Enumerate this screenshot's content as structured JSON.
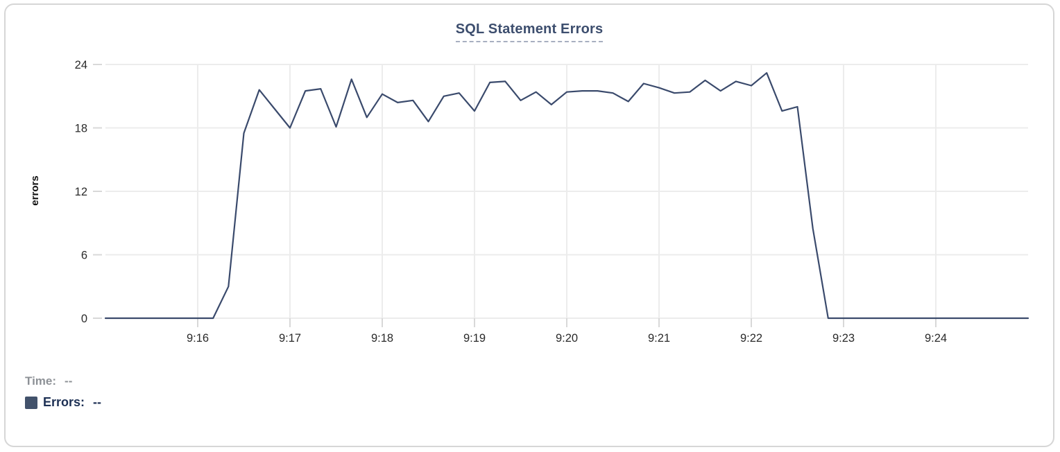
{
  "chart": {
    "title": "SQL Statement Errors"
  },
  "legend": {
    "time_label": "Time:",
    "time_value": "--",
    "errors_label": "Errors:",
    "errors_value": "--"
  },
  "colors": {
    "line": "#3a4a6c",
    "title": "#3d4e6e",
    "legend_swatch": "#42526b",
    "legend_muted": "#8d9196",
    "legend_dark": "#1d3054",
    "gridline": "#ececec"
  },
  "chart_data": {
    "type": "line",
    "title": "SQL Statement Errors",
    "xlabel": "",
    "ylabel": "errors",
    "ylim": [
      0,
      24
    ],
    "yticks": [
      0,
      6,
      12,
      18,
      24
    ],
    "xticks": [
      "9:16",
      "9:17",
      "9:18",
      "9:19",
      "9:20",
      "9:21",
      "9:22",
      "9:23",
      "9:24"
    ],
    "x_range": [
      "9:15:00",
      "9:25:00"
    ],
    "grid": true,
    "legend_position": "bottom-left",
    "series": [
      {
        "name": "Errors",
        "x": [
          "9:15:00",
          "9:15:10",
          "9:15:20",
          "9:15:30",
          "9:15:40",
          "9:15:50",
          "9:16:00",
          "9:16:10",
          "9:16:20",
          "9:16:30",
          "9:16:40",
          "9:16:50",
          "9:17:00",
          "9:17:10",
          "9:17:20",
          "9:17:30",
          "9:17:40",
          "9:17:50",
          "9:18:00",
          "9:18:10",
          "9:18:20",
          "9:18:30",
          "9:18:40",
          "9:18:50",
          "9:19:00",
          "9:19:10",
          "9:19:20",
          "9:19:30",
          "9:19:40",
          "9:19:50",
          "9:20:00",
          "9:20:10",
          "9:20:20",
          "9:20:30",
          "9:20:40",
          "9:20:50",
          "9:21:00",
          "9:21:10",
          "9:21:20",
          "9:21:30",
          "9:21:40",
          "9:21:50",
          "9:22:00",
          "9:22:10",
          "9:22:20",
          "9:22:30",
          "9:22:40",
          "9:22:50",
          "9:23:00",
          "9:23:10",
          "9:23:20",
          "9:23:30",
          "9:23:40",
          "9:23:50",
          "9:24:00",
          "9:24:10",
          "9:24:20",
          "9:24:30",
          "9:24:40",
          "9:24:50",
          "9:25:00"
        ],
        "values": [
          0,
          0,
          0,
          0,
          0,
          0,
          0,
          0,
          3,
          17.5,
          21.6,
          19.8,
          18,
          21.5,
          21.7,
          18.1,
          22.6,
          19,
          21.2,
          20.4,
          20.6,
          18.6,
          21,
          21.3,
          19.6,
          22.3,
          22.4,
          20.6,
          21.4,
          20.2,
          21.4,
          21.5,
          21.5,
          21.3,
          20.5,
          22.2,
          21.8,
          21.3,
          21.4,
          22.5,
          21.5,
          22.4,
          22,
          23.2,
          19.6,
          20,
          8.5,
          0,
          0,
          0,
          0,
          0,
          0,
          0,
          0,
          0,
          0,
          0,
          0,
          0,
          0
        ]
      }
    ]
  }
}
